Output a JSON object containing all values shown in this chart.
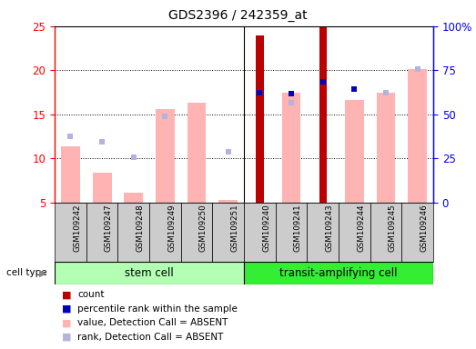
{
  "title": "GDS2396 / 242359_at",
  "samples": [
    "GSM109242",
    "GSM109247",
    "GSM109248",
    "GSM109249",
    "GSM109250",
    "GSM109251",
    "GSM109240",
    "GSM109241",
    "GSM109243",
    "GSM109244",
    "GSM109245",
    "GSM109246"
  ],
  "count_values": [
    null,
    null,
    null,
    null,
    null,
    null,
    23.9,
    null,
    24.9,
    null,
    null,
    null
  ],
  "percentile_values": [
    null,
    null,
    null,
    null,
    null,
    null,
    17.4,
    17.3,
    18.7,
    17.9,
    null,
    null
  ],
  "value_absent": [
    11.4,
    8.4,
    6.1,
    15.6,
    16.3,
    5.3,
    null,
    17.5,
    null,
    16.6,
    17.4,
    20.1
  ],
  "rank_absent": [
    12.5,
    11.9,
    10.1,
    14.8,
    null,
    10.7,
    null,
    16.3,
    null,
    null,
    17.4,
    20.1
  ],
  "ylim": [
    5,
    25
  ],
  "y2lim": [
    0,
    100
  ],
  "yticks": [
    5,
    10,
    15,
    20,
    25
  ],
  "y2ticks": [
    0,
    25,
    50,
    75,
    100
  ],
  "y2ticklabels": [
    "0",
    "25",
    "50",
    "75",
    "100%"
  ],
  "color_count": "#bb0000",
  "color_percentile": "#0000bb",
  "color_value_absent": "#ffb3b3",
  "color_rank_absent": "#b3b3dd",
  "stem_cell_color": "#b3ffb3",
  "transit_cell_color": "#33ee33",
  "sample_box_color": "#cccccc",
  "bar_width": 0.6
}
